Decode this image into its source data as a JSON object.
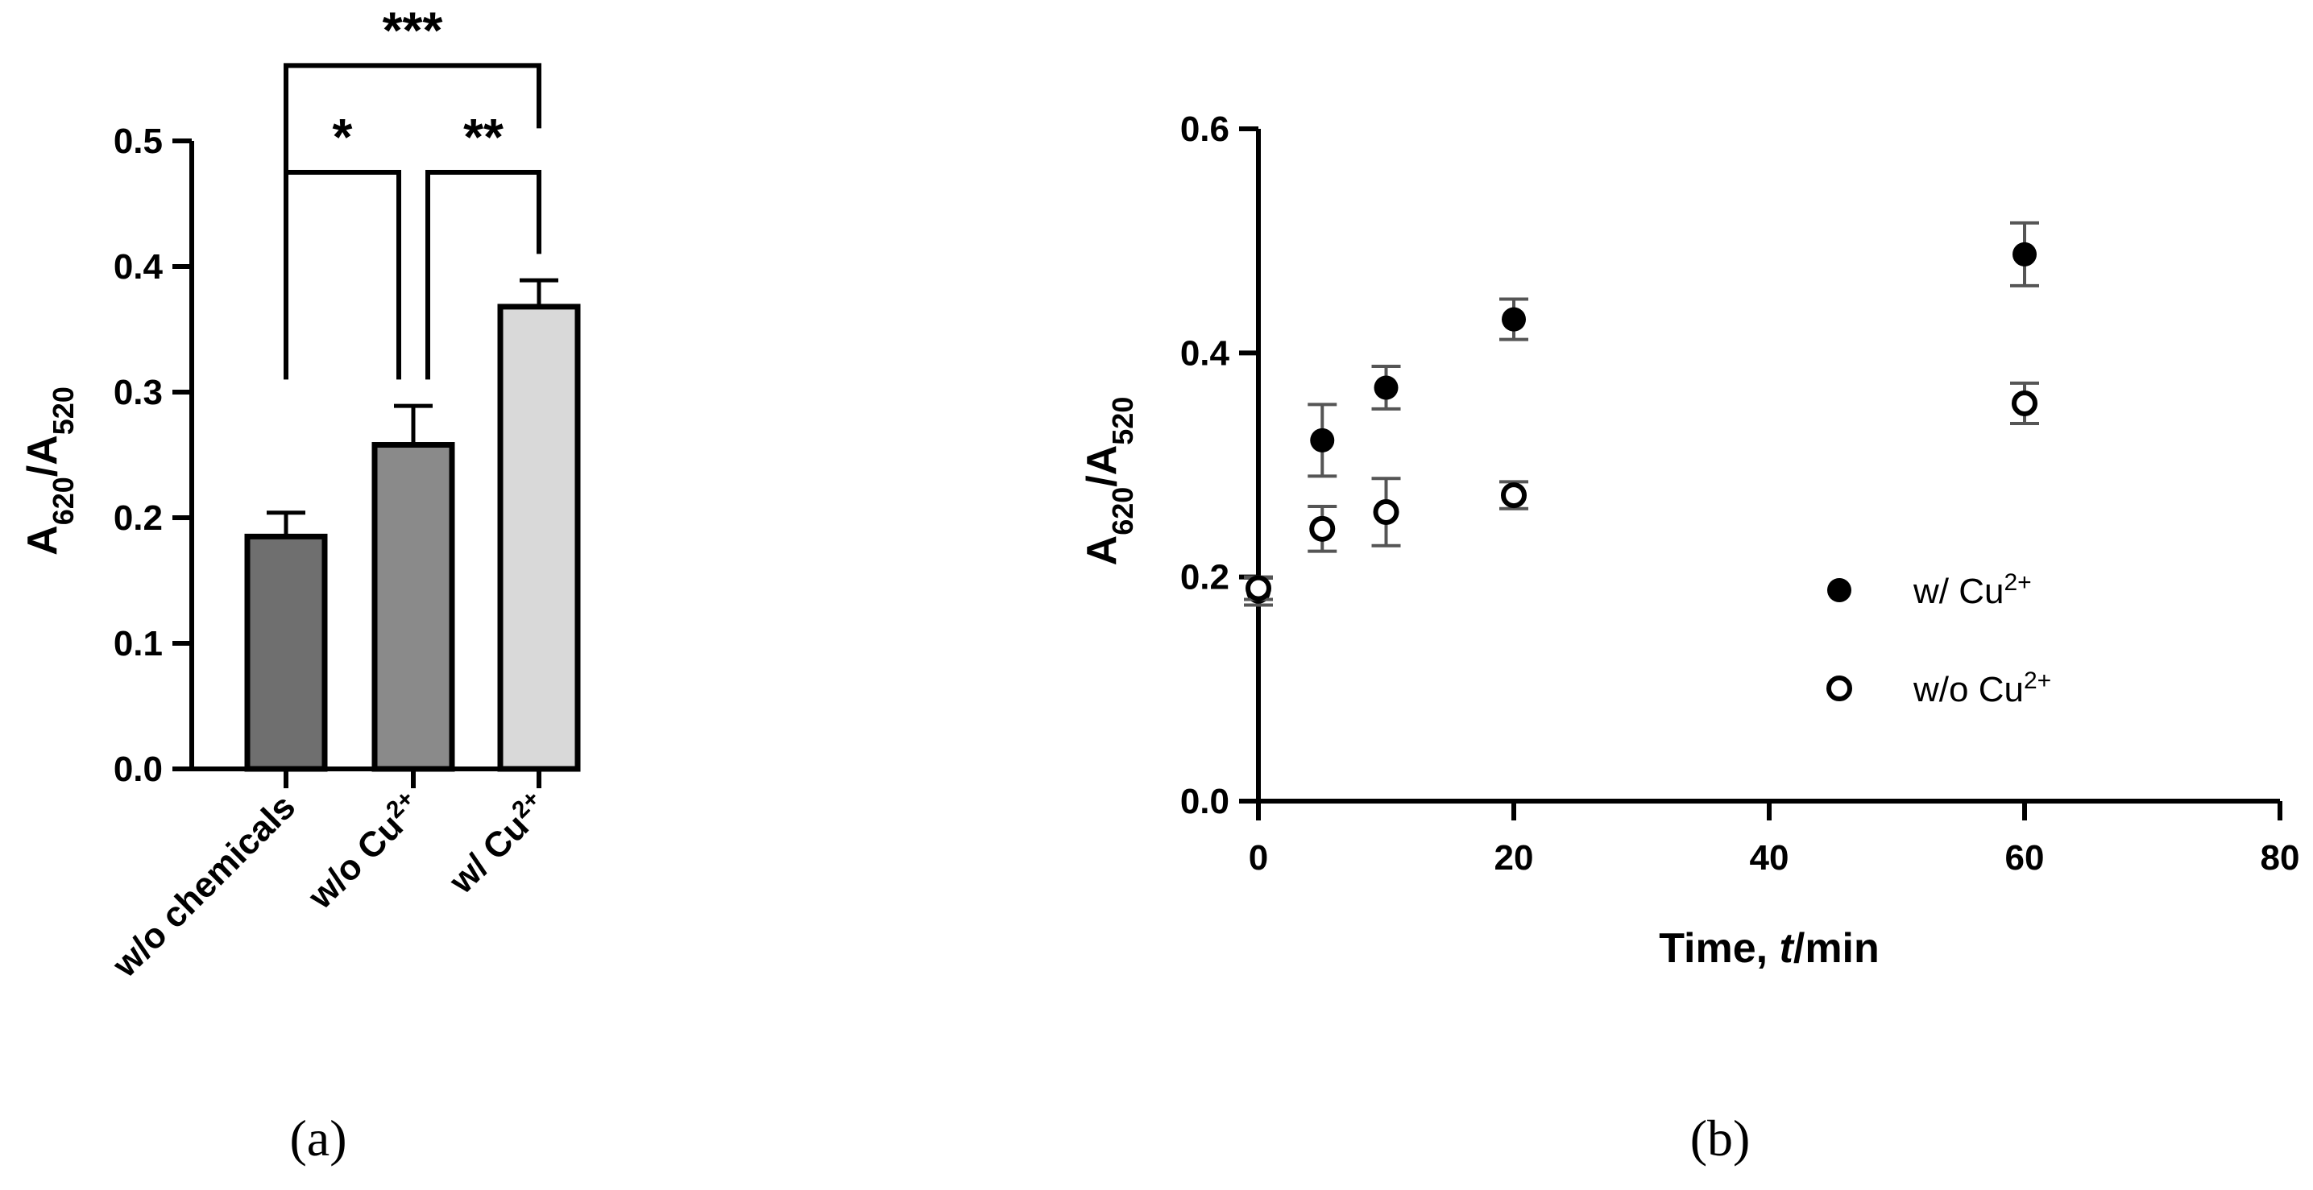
{
  "chart_data": [
    {
      "type": "bar",
      "panel_label": "(a)",
      "categories": [
        "w/o chemicals",
        "w/o Cu",
        "w/ Cu"
      ],
      "category_superscripts": [
        "",
        "2+",
        "2+"
      ],
      "values": [
        0.185,
        0.258,
        0.368
      ],
      "errors": [
        0.019,
        0.031,
        0.021
      ],
      "colors": [
        "#6f6f6f",
        "#8a8a8a",
        "#d9d9d9"
      ],
      "ylabel": {
        "base1": "A",
        "sub1": "620",
        "sep": "/",
        "base2": "A",
        "sub2": "520"
      },
      "ylim": [
        0,
        0.5
      ],
      "yticks": [
        "0.0",
        "0.1",
        "0.2",
        "0.3",
        "0.4",
        "0.5"
      ],
      "significance": [
        {
          "from": 0,
          "to": 1,
          "label": "*",
          "level": 0
        },
        {
          "from": 1,
          "to": 2,
          "label": "**",
          "level": 0
        },
        {
          "from": 0,
          "to": 2,
          "label": "***",
          "level": 1
        }
      ]
    },
    {
      "type": "scatter",
      "panel_label": "(b)",
      "xlabel": {
        "pre": "Time, ",
        "ital": "t",
        "post": "/min"
      },
      "ylabel": {
        "base1": "A",
        "sub1": "620",
        "sep": "/",
        "base2": "A",
        "sub2": "520"
      },
      "xlim": [
        0,
        80
      ],
      "ylim": [
        0,
        0.6
      ],
      "xticks": [
        "0",
        "20",
        "40",
        "60",
        "80"
      ],
      "yticks": [
        "0.0",
        "0.2",
        "0.4",
        "0.6"
      ],
      "legend_position": "center-right",
      "series": [
        {
          "name": "w/ Cu",
          "name_sup": "2+",
          "marker": "filled-circle",
          "x": [
            0,
            5,
            10,
            20,
            60
          ],
          "y": [
            0.187,
            0.322,
            0.369,
            0.43,
            0.488
          ],
          "err": [
            0.012,
            0.032,
            0.019,
            0.018,
            0.028
          ]
        },
        {
          "name": "w/o Cu",
          "name_sup": "2+",
          "marker": "open-circle",
          "x": [
            0,
            5,
            10,
            20,
            60
          ],
          "y": [
            0.19,
            0.243,
            0.258,
            0.273,
            0.355
          ],
          "err": [
            0.01,
            0.02,
            0.03,
            0.012,
            0.018
          ]
        }
      ]
    }
  ]
}
